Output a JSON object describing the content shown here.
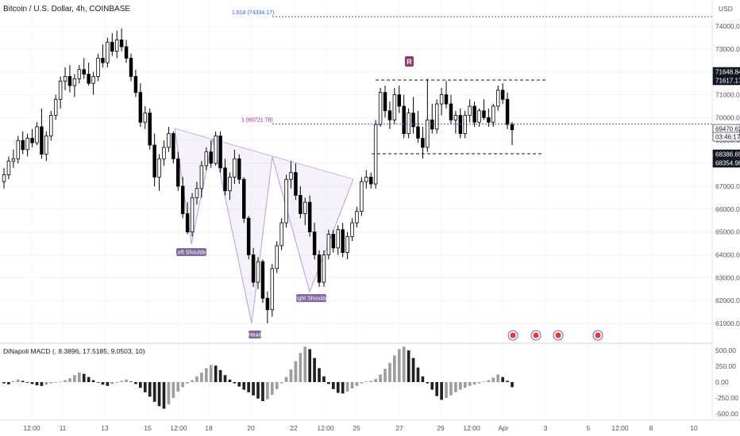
{
  "header": {
    "title": "Bitcoin / U.S. Dollar, 4h, COINBASE",
    "currency": "USD"
  },
  "colors": {
    "up": "#ffffff",
    "down": "#000000",
    "wick": "#000000",
    "pattern_fill": "#7e57c2",
    "fib_line": "#2962ff",
    "mid_line": "#9c27b0",
    "macd_up": "#9e9e9e",
    "macd_down": "#212121",
    "label_bg": "#7e6a9c",
    "r_badge": "#8e3b6b"
  },
  "annotations": {
    "fib_1618": "1.618 (74334.17)",
    "fib_1": "1 (69721.78)",
    "r_marker": "R",
    "left_shoulder": "Left Shoulder",
    "head": "Head",
    "right_shoulder": "Right Shoulder"
  },
  "price_axis": {
    "ticks": [
      "74000.00",
      "73000.00",
      "72000.00",
      "71000.00",
      "70000.00",
      "69000.00",
      "68000.00",
      "67000.00",
      "66000.00",
      "65000.00",
      "64000.00",
      "63000.00",
      "62000.00",
      "61000.00"
    ],
    "badges": [
      "71648.84",
      "71617.17",
      "69470.62",
      "03:46:17",
      "68386.65",
      "68354.98"
    ]
  },
  "macd": {
    "label": "DiNapoli MACD (, 8.3896, 17.5185, 9.0503, 10)",
    "ticks": [
      "500.00",
      "250.00",
      "0.00",
      "-250.00",
      "-500.00"
    ]
  },
  "time_axis": {
    "ticks": [
      "12:00",
      "11",
      "13",
      "15",
      "12:00",
      "18",
      "20",
      "22",
      "12:00",
      "25",
      "27",
      "29",
      "12:00",
      "Apr",
      "3",
      "5",
      "12:00",
      "8",
      "10"
    ]
  },
  "chart_data": {
    "type": "candlestick",
    "title": "Bitcoin / U.S. Dollar, 4h, COINBASE",
    "ylim": [
      60400,
      74800
    ],
    "x_range": [
      "Mar 10",
      "Apr 10"
    ],
    "ohlc": [
      [
        67200,
        67800,
        66900,
        67500
      ],
      [
        67500,
        68300,
        67300,
        68100
      ],
      [
        68100,
        68600,
        67800,
        68200
      ],
      [
        68200,
        69200,
        68000,
        69000
      ],
      [
        69000,
        69400,
        68400,
        68600
      ],
      [
        68600,
        69300,
        68300,
        69100
      ],
      [
        69100,
        69500,
        68700,
        68900
      ],
      [
        68900,
        69800,
        68800,
        69600
      ],
      [
        69600,
        70400,
        68200,
        68400
      ],
      [
        68400,
        69400,
        68100,
        69200
      ],
      [
        69200,
        70300,
        69000,
        70100
      ],
      [
        70100,
        71000,
        69900,
        70800
      ],
      [
        70800,
        71800,
        70400,
        71600
      ],
      [
        71600,
        72200,
        71200,
        71800
      ],
      [
        71800,
        72300,
        71100,
        71400
      ],
      [
        71400,
        71900,
        70900,
        71700
      ],
      [
        71700,
        72300,
        71500,
        72100
      ],
      [
        72100,
        72600,
        71700,
        71900
      ],
      [
        71900,
        72400,
        71400,
        71500
      ],
      [
        71500,
        72000,
        71000,
        71800
      ],
      [
        71800,
        72800,
        71600,
        72600
      ],
      [
        72600,
        73200,
        72200,
        72400
      ],
      [
        72400,
        73500,
        72200,
        73300
      ],
      [
        73300,
        73700,
        72700,
        72900
      ],
      [
        72900,
        73800,
        72600,
        73400
      ],
      [
        73400,
        73900,
        72900,
        73100
      ],
      [
        73100,
        73400,
        72400,
        72600
      ],
      [
        72600,
        72800,
        71600,
        71800
      ],
      [
        71800,
        72100,
        70900,
        71100
      ],
      [
        71100,
        71500,
        69600,
        69800
      ],
      [
        69800,
        70500,
        69500,
        70200
      ],
      [
        70200,
        70400,
        68600,
        68800
      ],
      [
        68800,
        69300,
        67000,
        67400
      ],
      [
        67400,
        68400,
        66800,
        68200
      ],
      [
        68200,
        69000,
        67900,
        68700
      ],
      [
        68700,
        69600,
        68500,
        69300
      ],
      [
        69300,
        69400,
        68000,
        68200
      ],
      [
        68200,
        68500,
        66800,
        67000
      ],
      [
        67000,
        67400,
        65600,
        65800
      ],
      [
        65800,
        66300,
        64900,
        65000
      ],
      [
        65000,
        66700,
        64800,
        66500
      ],
      [
        66500,
        67200,
        66200,
        66900
      ],
      [
        66900,
        68100,
        66500,
        67900
      ],
      [
        67900,
        68700,
        67700,
        68500
      ],
      [
        68500,
        69000,
        67800,
        68000
      ],
      [
        68000,
        69400,
        67900,
        69200
      ],
      [
        69200,
        69400,
        67600,
        67800
      ],
      [
        67800,
        68200,
        66600,
        66800
      ],
      [
        66800,
        67600,
        66400,
        67400
      ],
      [
        67400,
        68600,
        67100,
        68200
      ],
      [
        68200,
        68400,
        67100,
        67300
      ],
      [
        67300,
        67400,
        65400,
        65600
      ],
      [
        65600,
        65700,
        63800,
        64000
      ],
      [
        64000,
        64300,
        62600,
        62800
      ],
      [
        62800,
        63900,
        62500,
        63700
      ],
      [
        63700,
        63800,
        61900,
        62100
      ],
      [
        62100,
        62400,
        61000,
        61600
      ],
      [
        61600,
        63600,
        61300,
        63400
      ],
      [
        63400,
        64600,
        63200,
        64400
      ],
      [
        64400,
        65600,
        64200,
        65400
      ],
      [
        65400,
        67500,
        65200,
        67300
      ],
      [
        67300,
        68100,
        66900,
        67600
      ],
      [
        67600,
        68000,
        66400,
        66600
      ],
      [
        66600,
        67000,
        65600,
        65800
      ],
      [
        65800,
        66500,
        65300,
        66300
      ],
      [
        66300,
        66600,
        64800,
        65000
      ],
      [
        65000,
        65400,
        63800,
        64000
      ],
      [
        64000,
        64200,
        62600,
        62800
      ],
      [
        62800,
        64200,
        62600,
        64000
      ],
      [
        64000,
        65100,
        63800,
        64900
      ],
      [
        64900,
        65100,
        64100,
        64300
      ],
      [
        64300,
        65300,
        64000,
        65100
      ],
      [
        65100,
        65400,
        63900,
        64100
      ],
      [
        64100,
        65000,
        63800,
        64800
      ],
      [
        64800,
        65600,
        64600,
        65400
      ],
      [
        65400,
        66100,
        65200,
        65900
      ],
      [
        65900,
        67400,
        65700,
        67200
      ],
      [
        67200,
        67700,
        66900,
        67400
      ],
      [
        67400,
        67600,
        66900,
        67100
      ],
      [
        67100,
        69900,
        66900,
        69700
      ],
      [
        69700,
        71300,
        69600,
        71100
      ],
      [
        71100,
        71400,
        70000,
        70300
      ],
      [
        70300,
        70700,
        69500,
        69900
      ],
      [
        69900,
        71300,
        69700,
        71000
      ],
      [
        71000,
        71400,
        70200,
        70500
      ],
      [
        70500,
        71000,
        69100,
        69300
      ],
      [
        69300,
        70400,
        69100,
        70200
      ],
      [
        70200,
        70900,
        69300,
        69600
      ],
      [
        69600,
        70300,
        68900,
        69100
      ],
      [
        69100,
        69600,
        68200,
        68700
      ],
      [
        68700,
        71700,
        68500,
        69900
      ],
      [
        69900,
        70600,
        69300,
        69500
      ],
      [
        69500,
        70800,
        69300,
        70600
      ],
      [
        70600,
        71300,
        70100,
        71000
      ],
      [
        71000,
        71600,
        70400,
        70600
      ],
      [
        70600,
        71000,
        69700,
        69900
      ],
      [
        69900,
        70300,
        69300,
        70100
      ],
      [
        70100,
        70400,
        69100,
        69300
      ],
      [
        69300,
        70300,
        69100,
        70100
      ],
      [
        70100,
        70800,
        69800,
        70500
      ],
      [
        70500,
        70700,
        69600,
        69800
      ],
      [
        69800,
        70400,
        69600,
        70300
      ],
      [
        70300,
        70800,
        69900,
        70000
      ],
      [
        70000,
        70400,
        69600,
        69800
      ],
      [
        69800,
        70600,
        69600,
        70500
      ],
      [
        70500,
        71400,
        70300,
        71200
      ],
      [
        71200,
        71500,
        70600,
        70800
      ],
      [
        70800,
        71100,
        69500,
        69700
      ],
      [
        69700,
        69800,
        68800,
        69470
      ]
    ],
    "series": [
      {
        "name": "DiNapoli MACD (, 8.3896, 17.5185, 9.0503, 10)",
        "values": [
          -20,
          -35,
          15,
          40,
          20,
          -10,
          -30,
          -50,
          -60,
          -40,
          -20,
          -5,
          10,
          30,
          60,
          110,
          150,
          130,
          80,
          30,
          -10,
          -40,
          -60,
          -30,
          -10,
          20,
          40,
          10,
          -30,
          -90,
          -160,
          -230,
          -310,
          -380,
          -420,
          -350,
          -250,
          -150,
          -80,
          -20,
          30,
          90,
          150,
          220,
          270,
          260,
          190,
          110,
          40,
          -20,
          -70,
          -120,
          -160,
          -210,
          -260,
          -300,
          -270,
          -200,
          -110,
          -20,
          80,
          200,
          330,
          460,
          560,
          520,
          380,
          220,
          90,
          -30,
          -110,
          -170,
          -180,
          -150,
          -100,
          -60,
          -20,
          10,
          20,
          50,
          120,
          210,
          300,
          420,
          520,
          560,
          500,
          380,
          230,
          90,
          -20,
          -120,
          -220,
          -280,
          -250,
          -210,
          -160,
          -120,
          -90,
          -60,
          -40,
          -20,
          10,
          30,
          70,
          120,
          80,
          20,
          -80
        ]
      }
    ]
  }
}
